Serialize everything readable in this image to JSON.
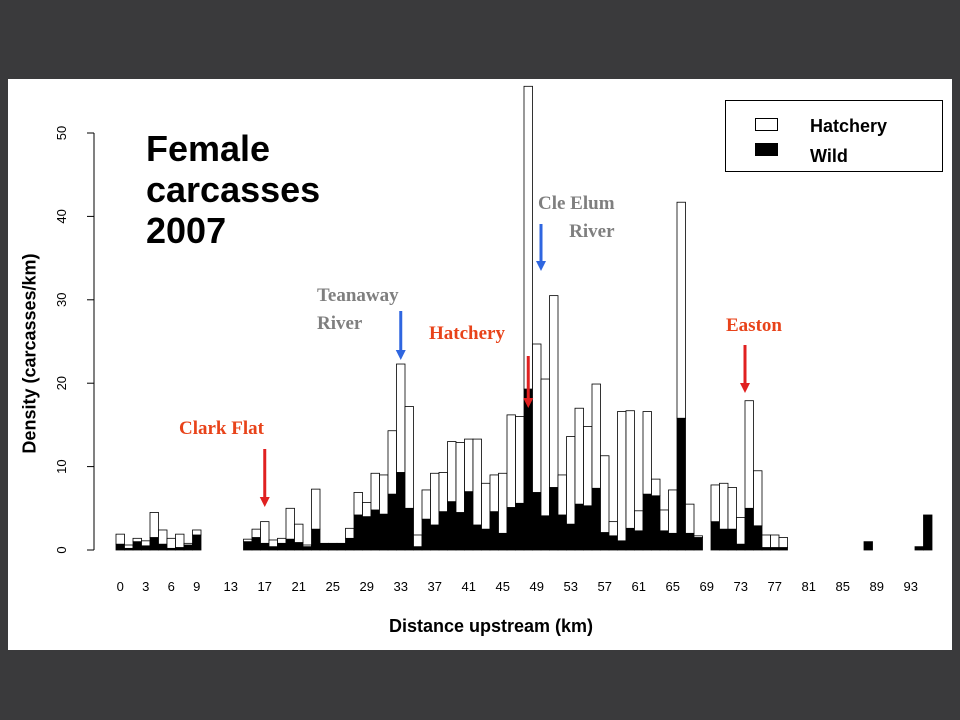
{
  "chart_data": {
    "type": "bar",
    "stacked": true,
    "title_lines": [
      "Female",
      "carcasses",
      "2007"
    ],
    "xlabel": "Distance upstream (km)",
    "ylabel": "Density (carcasses/km)",
    "ylim": [
      0,
      50
    ],
    "yticks": [
      0,
      10,
      20,
      30,
      40,
      50
    ],
    "xlim": [
      0,
      96
    ],
    "xticks": [
      0,
      3,
      6,
      9,
      13,
      17,
      21,
      25,
      29,
      33,
      37,
      41,
      45,
      49,
      53,
      57,
      61,
      65,
      69,
      73,
      77,
      81,
      85,
      89,
      93
    ],
    "grid": false,
    "legend_position": "top-right",
    "series": [
      {
        "name": "Hatchery",
        "color": "#ffffff"
      },
      {
        "name": "Wild",
        "color": "#000000"
      }
    ],
    "km": [
      0,
      1,
      2,
      3,
      4,
      5,
      6,
      7,
      8,
      9,
      10,
      11,
      12,
      13,
      14,
      15,
      16,
      17,
      18,
      19,
      20,
      21,
      22,
      23,
      24,
      25,
      26,
      27,
      28,
      29,
      30,
      31,
      32,
      33,
      34,
      35,
      36,
      37,
      38,
      39,
      40,
      41,
      42,
      43,
      44,
      45,
      46,
      47,
      48,
      49,
      50,
      51,
      52,
      53,
      54,
      55,
      56,
      57,
      58,
      59,
      60,
      61,
      62,
      63,
      64,
      65,
      66,
      67,
      68,
      69,
      70,
      71,
      72,
      73,
      74,
      75,
      76,
      77,
      78,
      79,
      80,
      81,
      82,
      83,
      84,
      85,
      86,
      87,
      88,
      89,
      90,
      91,
      92,
      93,
      94,
      95
    ],
    "wild": [
      0.7,
      0.2,
      1.0,
      0.5,
      1.5,
      0.7,
      0.2,
      0.3,
      0.6,
      1.8,
      0,
      0,
      0,
      0,
      0,
      1.0,
      1.5,
      0.8,
      0.4,
      0.8,
      1.3,
      0.9,
      0.4,
      2.5,
      0.8,
      0.8,
      0.8,
      1.4,
      4.2,
      4.0,
      4.8,
      4.3,
      6.7,
      9.3,
      5.0,
      0.4,
      3.7,
      3.0,
      4.6,
      5.8,
      4.5,
      7.0,
      3.0,
      2.5,
      4.6,
      2.0,
      5.1,
      5.6,
      19.3,
      6.9,
      4.1,
      7.5,
      4.2,
      3.1,
      5.5,
      5.3,
      7.4,
      2.1,
      1.7,
      1.1,
      2.6,
      2.3,
      6.7,
      6.5,
      2.3,
      2.0,
      15.8,
      2.0,
      1.5,
      0,
      3.4,
      2.5,
      2.5,
      0.7,
      5.0,
      2.9,
      0.3,
      0.3,
      0.3,
      0,
      0,
      0,
      0,
      0,
      0,
      0,
      0,
      0,
      1.0,
      0,
      0,
      0,
      0,
      0,
      0.4,
      4.2
    ],
    "hatchery": [
      1.2,
      0.4,
      0.4,
      0.6,
      3.0,
      1.7,
      1.2,
      1.6,
      0.2,
      0.6,
      0,
      0,
      0,
      0,
      0,
      0.3,
      1.0,
      2.6,
      0.8,
      0.6,
      3.7,
      2.2,
      0.2,
      4.8,
      0,
      0,
      0,
      1.2,
      2.7,
      1.7,
      4.4,
      4.7,
      7.6,
      13.0,
      12.2,
      1.4,
      3.5,
      6.2,
      4.7,
      7.2,
      8.4,
      6.3,
      10.3,
      5.5,
      4.4,
      7.2,
      11.1,
      10.4,
      36.3,
      17.8,
      16.4,
      23.0,
      4.8,
      10.5,
      11.5,
      9.5,
      12.5,
      9.2,
      1.7,
      15.5,
      14.1,
      2.4,
      9.9,
      2.0,
      2.5,
      5.2,
      25.9,
      3.5,
      0.2,
      0,
      4.4,
      5.5,
      5.0,
      3.2,
      12.9,
      6.6,
      1.5,
      1.5,
      1.2,
      0,
      0,
      0,
      0,
      0,
      0,
      0,
      0,
      0,
      0,
      0,
      0,
      0,
      0,
      0,
      0,
      0
    ]
  },
  "annotations": [
    {
      "id": "clark-flat",
      "lines": [
        "Clark Flat"
      ],
      "color": "#e8431a",
      "arrow_color": "#e02020",
      "km": 17
    },
    {
      "id": "teanaway",
      "lines": [
        "Teanaway",
        "River"
      ],
      "color": "#7f7f7f",
      "arrow_color": "#2f66e0",
      "km": 33
    },
    {
      "id": "hatchery",
      "lines": [
        "Hatchery"
      ],
      "color": "#e8431a",
      "arrow_color": "#e02020",
      "km": 48
    },
    {
      "id": "cle-elum",
      "lines": [
        "Cle Elum",
        "River"
      ],
      "color": "#7f7f7f",
      "arrow_color": "#2f66e0",
      "km": 49.5
    },
    {
      "id": "easton",
      "lines": [
        "Easton"
      ],
      "color": "#e8431a",
      "arrow_color": "#e02020",
      "km": 73.5
    }
  ]
}
